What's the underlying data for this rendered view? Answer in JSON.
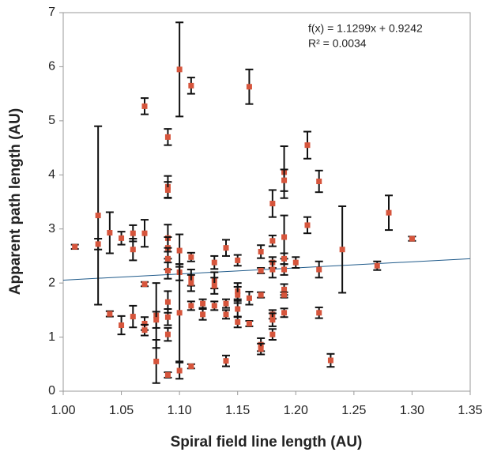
{
  "chart_data": {
    "type": "scatter",
    "xlabel": "Spiral field line length (AU)",
    "ylabel": "Apparent path length (AU)",
    "xlim": [
      1.0,
      1.35
    ],
    "xticks": [
      {
        "value": 1.0,
        "label": "1.00"
      },
      {
        "value": 1.05,
        "label": "1.05"
      },
      {
        "value": 1.1,
        "label": "1.10"
      },
      {
        "value": 1.15,
        "label": "1.15"
      },
      {
        "value": 1.2,
        "label": "1.20"
      },
      {
        "value": 1.25,
        "label": "1.25"
      },
      {
        "value": 1.3,
        "label": "1.30"
      },
      {
        "value": 1.35,
        "label": "1.35"
      }
    ],
    "ylim": [
      0,
      7
    ],
    "yticks": [
      0,
      1,
      2,
      3,
      4,
      5,
      6,
      7
    ],
    "trendline": {
      "equation": "f(x) = 1.1299x + 0.9242",
      "r_squared": "R² = 0.0034",
      "slope": 1.1299,
      "intercept": 0.9242,
      "color": "#1f5a8a"
    },
    "series": [
      {
        "color": "#d6553c",
        "error_color": "#111111",
        "x": [
          1.01,
          1.03,
          1.03,
          1.04,
          1.04,
          1.05,
          1.05,
          1.06,
          1.06,
          1.06,
          1.07,
          1.07,
          1.07,
          1.07,
          1.07,
          1.08,
          1.08,
          1.08,
          1.09,
          1.09,
          1.09,
          1.09,
          1.09,
          1.09,
          1.09,
          1.09,
          1.09,
          1.09,
          1.09,
          1.1,
          1.1,
          1.1,
          1.1,
          1.1,
          1.11,
          1.11,
          1.11,
          1.11,
          1.11,
          1.11,
          1.12,
          1.12,
          1.13,
          1.13,
          1.13,
          1.13,
          1.14,
          1.14,
          1.14,
          1.14,
          1.15,
          1.15,
          1.15,
          1.15,
          1.15,
          1.16,
          1.16,
          1.16,
          1.17,
          1.17,
          1.17,
          1.17,
          1.17,
          1.18,
          1.18,
          1.18,
          1.18,
          1.18,
          1.18,
          1.18,
          1.19,
          1.19,
          1.19,
          1.19,
          1.19,
          1.19,
          1.19,
          1.19,
          1.2,
          1.21,
          1.21,
          1.22,
          1.22,
          1.22,
          1.23,
          1.24,
          1.27,
          1.28,
          1.3
        ],
        "values": [
          2.67,
          3.25,
          2.72,
          2.93,
          1.43,
          2.83,
          1.22,
          2.92,
          2.62,
          1.38,
          5.27,
          2.92,
          1.98,
          1.25,
          1.13,
          1.4,
          0.55,
          1.32,
          4.7,
          3.78,
          3.72,
          2.83,
          2.65,
          2.45,
          2.23,
          1.65,
          1.37,
          1.05,
          0.3,
          5.95,
          2.6,
          2.2,
          1.45,
          0.38,
          5.65,
          2.48,
          2.1,
          2.0,
          1.58,
          0.46,
          1.62,
          1.42,
          2.38,
          2.05,
          1.95,
          1.58,
          2.65,
          1.62,
          1.42,
          0.56,
          2.42,
          1.85,
          1.78,
          1.52,
          1.28,
          5.63,
          1.72,
          1.25,
          2.58,
          2.23,
          1.78,
          0.86,
          0.78,
          3.47,
          2.78,
          2.38,
          2.25,
          1.42,
          1.32,
          1.05,
          4.05,
          3.9,
          2.85,
          2.45,
          2.25,
          1.88,
          1.78,
          1.45,
          2.38,
          4.55,
          3.07,
          3.88,
          2.25,
          1.45,
          0.57,
          2.62,
          2.32,
          3.3,
          2.82
        ],
        "errors": [
          0.04,
          1.65,
          0.1,
          0.38,
          0.05,
          0.12,
          0.17,
          0.15,
          0.2,
          0.2,
          0.15,
          0.25,
          0.04,
          0.12,
          0.1,
          0.6,
          0.4,
          0.15,
          0.15,
          0.2,
          0.15,
          0.25,
          0.2,
          0.2,
          0.15,
          0.2,
          0.15,
          0.12,
          0.05,
          0.87,
          0.3,
          0.15,
          0.9,
          0.15,
          0.15,
          0.08,
          0.15,
          0.15,
          0.08,
          0.04,
          0.08,
          0.1,
          0.12,
          0.15,
          0.15,
          0.08,
          0.15,
          0.08,
          0.08,
          0.1,
          0.1,
          0.15,
          0.15,
          0.15,
          0.1,
          0.32,
          0.12,
          0.05,
          0.12,
          0.05,
          0.05,
          0.12,
          0.1,
          0.25,
          0.1,
          0.1,
          0.15,
          0.08,
          0.12,
          0.1,
          0.48,
          0.2,
          0.4,
          0.1,
          0.1,
          0.1,
          0.05,
          0.08,
          0.1,
          0.25,
          0.15,
          0.2,
          0.15,
          0.1,
          0.12,
          0.8,
          0.08,
          0.32,
          0.04
        ]
      }
    ]
  }
}
